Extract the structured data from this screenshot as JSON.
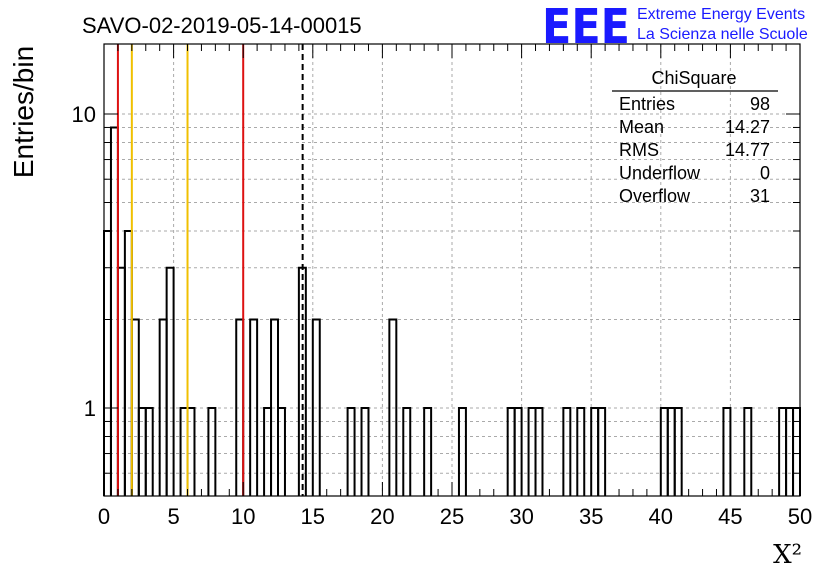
{
  "chart_data": {
    "type": "bar",
    "title": "SAVO-02-2019-05-14-00015",
    "xlabel": "X²",
    "ylabel": "Entries/bin",
    "xlim": [
      0,
      50
    ],
    "ylim": [
      0.5,
      16
    ],
    "yscale": "log",
    "grid": true,
    "bin_width": 0.5,
    "x_ticks": [
      "0",
      "5",
      "10",
      "15",
      "20",
      "25",
      "30",
      "35",
      "40",
      "45",
      "50"
    ],
    "y_ticks": [
      "1",
      "10"
    ],
    "bins": [
      {
        "x": 0.0,
        "count": 4
      },
      {
        "x": 0.5,
        "count": 9
      },
      {
        "x": 1.0,
        "count": 3
      },
      {
        "x": 1.5,
        "count": 4
      },
      {
        "x": 2.0,
        "count": 2
      },
      {
        "x": 2.5,
        "count": 1
      },
      {
        "x": 3.0,
        "count": 1
      },
      {
        "x": 3.5,
        "count": 0
      },
      {
        "x": 4.0,
        "count": 2
      },
      {
        "x": 4.5,
        "count": 3
      },
      {
        "x": 5.0,
        "count": 0
      },
      {
        "x": 5.5,
        "count": 1
      },
      {
        "x": 6.0,
        "count": 1
      },
      {
        "x": 6.5,
        "count": 0
      },
      {
        "x": 7.0,
        "count": 0
      },
      {
        "x": 7.5,
        "count": 1
      },
      {
        "x": 8.0,
        "count": 0
      },
      {
        "x": 8.5,
        "count": 0
      },
      {
        "x": 9.0,
        "count": 0
      },
      {
        "x": 9.5,
        "count": 2
      },
      {
        "x": 10.0,
        "count": 0
      },
      {
        "x": 10.5,
        "count": 2
      },
      {
        "x": 11.0,
        "count": 0
      },
      {
        "x": 11.5,
        "count": 1
      },
      {
        "x": 12.0,
        "count": 2
      },
      {
        "x": 12.5,
        "count": 1
      },
      {
        "x": 13.0,
        "count": 0
      },
      {
        "x": 13.5,
        "count": 0
      },
      {
        "x": 14.0,
        "count": 3
      },
      {
        "x": 14.5,
        "count": 0
      },
      {
        "x": 15.0,
        "count": 2
      },
      {
        "x": 15.5,
        "count": 0
      },
      {
        "x": 16.0,
        "count": 0
      },
      {
        "x": 16.5,
        "count": 0
      },
      {
        "x": 17.0,
        "count": 0
      },
      {
        "x": 17.5,
        "count": 1
      },
      {
        "x": 18.0,
        "count": 0
      },
      {
        "x": 18.5,
        "count": 1
      },
      {
        "x": 19.0,
        "count": 0
      },
      {
        "x": 19.5,
        "count": 0
      },
      {
        "x": 20.0,
        "count": 0
      },
      {
        "x": 20.5,
        "count": 2
      },
      {
        "x": 21.0,
        "count": 0
      },
      {
        "x": 21.5,
        "count": 1
      },
      {
        "x": 22.0,
        "count": 0
      },
      {
        "x": 22.5,
        "count": 0
      },
      {
        "x": 23.0,
        "count": 1
      },
      {
        "x": 23.5,
        "count": 0
      },
      {
        "x": 24.0,
        "count": 0
      },
      {
        "x": 24.5,
        "count": 0
      },
      {
        "x": 25.0,
        "count": 0
      },
      {
        "x": 25.5,
        "count": 1
      },
      {
        "x": 26.0,
        "count": 0
      },
      {
        "x": 26.5,
        "count": 0
      },
      {
        "x": 27.0,
        "count": 0
      },
      {
        "x": 27.5,
        "count": 0
      },
      {
        "x": 28.0,
        "count": 0
      },
      {
        "x": 28.5,
        "count": 0
      },
      {
        "x": 29.0,
        "count": 1
      },
      {
        "x": 29.5,
        "count": 1
      },
      {
        "x": 30.0,
        "count": 0
      },
      {
        "x": 30.5,
        "count": 1
      },
      {
        "x": 31.0,
        "count": 1
      },
      {
        "x": 31.5,
        "count": 0
      },
      {
        "x": 32.0,
        "count": 0
      },
      {
        "x": 32.5,
        "count": 0
      },
      {
        "x": 33.0,
        "count": 1
      },
      {
        "x": 33.5,
        "count": 0
      },
      {
        "x": 34.0,
        "count": 1
      },
      {
        "x": 34.5,
        "count": 0
      },
      {
        "x": 35.0,
        "count": 1
      },
      {
        "x": 35.5,
        "count": 1
      },
      {
        "x": 36.0,
        "count": 0
      },
      {
        "x": 36.5,
        "count": 0
      },
      {
        "x": 37.0,
        "count": 0
      },
      {
        "x": 37.5,
        "count": 0
      },
      {
        "x": 38.0,
        "count": 0
      },
      {
        "x": 38.5,
        "count": 0
      },
      {
        "x": 39.0,
        "count": 0
      },
      {
        "x": 39.5,
        "count": 0
      },
      {
        "x": 40.0,
        "count": 1
      },
      {
        "x": 40.5,
        "count": 1
      },
      {
        "x": 41.0,
        "count": 1
      },
      {
        "x": 41.5,
        "count": 0
      },
      {
        "x": 42.0,
        "count": 0
      },
      {
        "x": 42.5,
        "count": 0
      },
      {
        "x": 43.0,
        "count": 0
      },
      {
        "x": 43.5,
        "count": 0
      },
      {
        "x": 44.0,
        "count": 0
      },
      {
        "x": 44.5,
        "count": 1
      },
      {
        "x": 45.0,
        "count": 0
      },
      {
        "x": 45.5,
        "count": 0
      },
      {
        "x": 46.0,
        "count": 1
      },
      {
        "x": 46.5,
        "count": 0
      },
      {
        "x": 47.0,
        "count": 0
      },
      {
        "x": 47.5,
        "count": 0
      },
      {
        "x": 48.0,
        "count": 0
      },
      {
        "x": 48.5,
        "count": 1
      },
      {
        "x": 49.0,
        "count": 1
      },
      {
        "x": 49.5,
        "count": 1
      }
    ],
    "reference_lines": [
      {
        "x": 1.0,
        "color": "#dd1111",
        "style": "solid"
      },
      {
        "x": 2.0,
        "color": "#f0c000",
        "style": "solid"
      },
      {
        "x": 6.0,
        "color": "#f0c000",
        "style": "solid"
      },
      {
        "x": 10.0,
        "color": "#dd1111",
        "style": "solid"
      },
      {
        "x": 14.27,
        "color": "#000000",
        "style": "dashed"
      }
    ],
    "stats_box": {
      "title": "ChiSquare",
      "rows": [
        {
          "label": "Entries",
          "value": "98"
        },
        {
          "label": "Mean",
          "value": "14.27"
        },
        {
          "label": "RMS",
          "value": "14.77"
        },
        {
          "label": "Underflow",
          "value": "0"
        },
        {
          "label": "Overflow",
          "value": "31"
        }
      ]
    }
  },
  "logo": {
    "mark": "EEE",
    "line1": "Extreme Energy Events",
    "line2": "La Scienza nelle Scuole",
    "color": "#1a1aff"
  }
}
